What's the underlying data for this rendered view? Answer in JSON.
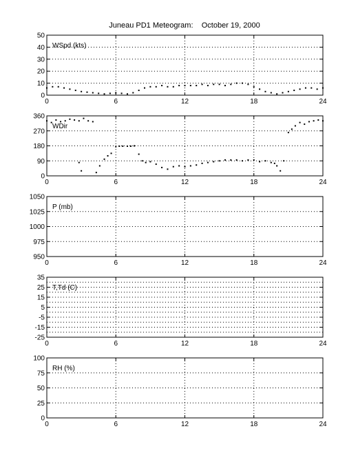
{
  "title": "Juneau PD1 Meteogram:    October 19, 2000",
  "colors": {
    "axis": "#000000",
    "grid": "#000000",
    "data": "#000000",
    "background": "#ffffff"
  },
  "chart_data": [
    {
      "type": "scatter",
      "label": "WSpd (kts)",
      "xlim": [
        0,
        24
      ],
      "xticks": [
        0,
        6,
        12,
        18,
        24
      ],
      "ylim": [
        0,
        50
      ],
      "yticks": [
        0,
        10,
        20,
        30,
        40,
        50
      ],
      "grid": true,
      "x": [
        0,
        0.5,
        1,
        1.5,
        2,
        2.5,
        3,
        3.5,
        4,
        4.5,
        5,
        5.5,
        6,
        6.5,
        7,
        7.5,
        8,
        8.5,
        9,
        9.5,
        10,
        10.5,
        11,
        11.5,
        12,
        12.5,
        13,
        13.5,
        14,
        14.5,
        15,
        15.5,
        16,
        16.5,
        17,
        17.5,
        18,
        18.5,
        19,
        19.5,
        20,
        20.5,
        21,
        21.5,
        22,
        22.5,
        23,
        23.5,
        24
      ],
      "values": [
        6,
        7,
        7,
        6,
        5,
        4,
        3,
        2.5,
        2,
        1.5,
        1,
        1.5,
        2,
        1.5,
        1,
        2,
        4,
        6,
        7,
        7,
        8,
        7,
        7,
        8,
        8,
        8,
        8,
        9,
        8,
        9,
        9,
        8,
        9,
        10,
        10,
        9,
        7,
        5,
        3,
        2,
        1,
        2,
        3,
        4,
        5,
        6,
        6,
        5,
        6
      ]
    },
    {
      "type": "scatter",
      "label": "WDir",
      "xlim": [
        0,
        24
      ],
      "xticks": [
        0,
        6,
        12,
        18,
        24
      ],
      "ylim": [
        0,
        360
      ],
      "yticks": [
        0,
        90,
        180,
        270,
        360
      ],
      "grid": true,
      "x": [
        0,
        0.4,
        0.8,
        1.2,
        1.6,
        2,
        2.4,
        2.8,
        3.2,
        3.6,
        4,
        2.8,
        3,
        4.3,
        4.6,
        5,
        5.3,
        5.6,
        6,
        6.3,
        6.6,
        7,
        7.3,
        7.6,
        8,
        8.3,
        8.6,
        9,
        9.5,
        10,
        10.5,
        11,
        11.5,
        12,
        12.5,
        13,
        13.5,
        14,
        14.5,
        15,
        15.5,
        16,
        16.5,
        17,
        17.5,
        18,
        18.5,
        19,
        19.5,
        19.8,
        20,
        20.3,
        20.6,
        21,
        21.3,
        21.6,
        22,
        22.4,
        22.8,
        23.2,
        23.6,
        24
      ],
      "values": [
        330,
        320,
        335,
        325,
        330,
        340,
        335,
        330,
        345,
        330,
        325,
        80,
        30,
        20,
        60,
        100,
        120,
        135,
        175,
        178,
        178,
        178,
        178,
        180,
        130,
        90,
        80,
        85,
        70,
        50,
        40,
        55,
        60,
        55,
        60,
        65,
        75,
        80,
        85,
        90,
        95,
        95,
        95,
        90,
        95,
        95,
        85,
        90,
        80,
        75,
        60,
        30,
        90,
        260,
        280,
        300,
        320,
        310,
        325,
        330,
        335,
        330
      ]
    },
    {
      "type": "scatter",
      "label": "P (mb)",
      "xlim": [
        0,
        24
      ],
      "xticks": [
        0,
        6,
        12,
        18,
        24
      ],
      "ylim": [
        950,
        1050
      ],
      "yticks": [
        950,
        975,
        1000,
        1025,
        1050
      ],
      "grid": true,
      "x": [],
      "values": []
    },
    {
      "type": "scatter",
      "label": "T,Td (C)",
      "xlim": [
        0,
        24
      ],
      "xticks": [
        0,
        6,
        12,
        18,
        24
      ],
      "ylim": [
        -25,
        35
      ],
      "yticks": [
        -25,
        -15,
        -5,
        5,
        15,
        25,
        35
      ],
      "ytick_labels": [
        "-25",
        "-15",
        "-5",
        "5",
        "15",
        "25",
        "35"
      ],
      "minor_gridlines": [
        -20,
        -10,
        0,
        10,
        20,
        30
      ],
      "grid": true,
      "x": [],
      "values": []
    },
    {
      "type": "scatter",
      "label": "RH (%)",
      "xlim": [
        0,
        24
      ],
      "xticks": [
        0,
        6,
        12,
        18,
        24
      ],
      "ylim": [
        0,
        100
      ],
      "yticks": [
        0,
        25,
        50,
        75,
        100
      ],
      "grid": true,
      "x": [],
      "values": []
    }
  ]
}
